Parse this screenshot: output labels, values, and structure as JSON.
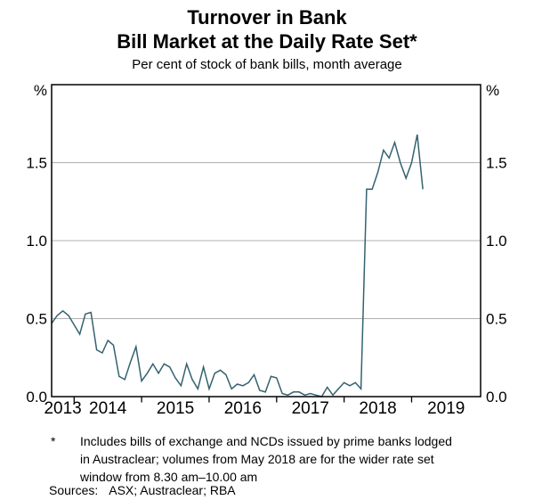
{
  "title_line1": "Turnover in Bank",
  "title_line2": "Bill Market at the Daily Rate Set*",
  "subtitle": "Per cent of stock of bank bills, month average",
  "chart_data": {
    "type": "line",
    "title": "Turnover in Bank Bill Market at the Daily Rate Set*",
    "subtitle": "Per cent of stock of bank bills, month average",
    "unit_left": "%",
    "unit_right": "%",
    "ylim": [
      0,
      2
    ],
    "ytick_values": [
      0,
      0.5,
      1.0,
      1.5
    ],
    "ytick_labels": [
      "0.0",
      "0.5",
      "1.0",
      "1.5"
    ],
    "gridline_values": [
      0.5,
      1.0,
      1.5
    ],
    "grid": "horizontal",
    "legend_position": "none",
    "x_axis_start": "2013-09",
    "x_axis_end": "2020-01",
    "x_tick_dates": [
      "2014-01",
      "2015-01",
      "2016-01",
      "2017-01",
      "2018-01",
      "2019-01"
    ],
    "x_tick_months": [
      4,
      16,
      28,
      40,
      52,
      64
    ],
    "x_year_labels": [
      "2013",
      "2014",
      "2015",
      "2016",
      "2017",
      "2018",
      "2019"
    ],
    "line_color": "#346270",
    "gridline_color": "#b0b0b0",
    "frame_color": "#000000",
    "series": [
      {
        "name": "Turnover at the daily rate set",
        "color": "#346270",
        "frequency": "monthly",
        "start": "2013-09",
        "end": "2019-03",
        "values": [
          0.47,
          0.52,
          0.55,
          0.52,
          0.46,
          0.4,
          0.53,
          0.54,
          0.3,
          0.28,
          0.36,
          0.33,
          0.13,
          0.11,
          0.22,
          0.32,
          0.1,
          0.15,
          0.21,
          0.15,
          0.21,
          0.19,
          0.12,
          0.07,
          0.21,
          0.11,
          0.05,
          0.19,
          0.05,
          0.15,
          0.17,
          0.14,
          0.05,
          0.08,
          0.07,
          0.09,
          0.14,
          0.04,
          0.03,
          0.13,
          0.12,
          0.02,
          0.01,
          0.03,
          0.03,
          0.01,
          0.02,
          0.01,
          0.0,
          0.06,
          0.01,
          0.05,
          0.09,
          0.07,
          0.09,
          0.05,
          1.33,
          1.33,
          1.44,
          1.58,
          1.53,
          1.63,
          1.5,
          1.4,
          1.5,
          1.68,
          1.33
        ]
      }
    ]
  },
  "footnote": {
    "marker": "*",
    "lines": [
      "Includes bills of exchange and NCDs issued by prime banks lodged",
      "in Austraclear; volumes from May 2018 are for the wider rate set",
      "window from 8.30 am–10.00 am"
    ],
    "sources_label": "Sources:",
    "sources": "ASX; Austraclear; RBA"
  }
}
